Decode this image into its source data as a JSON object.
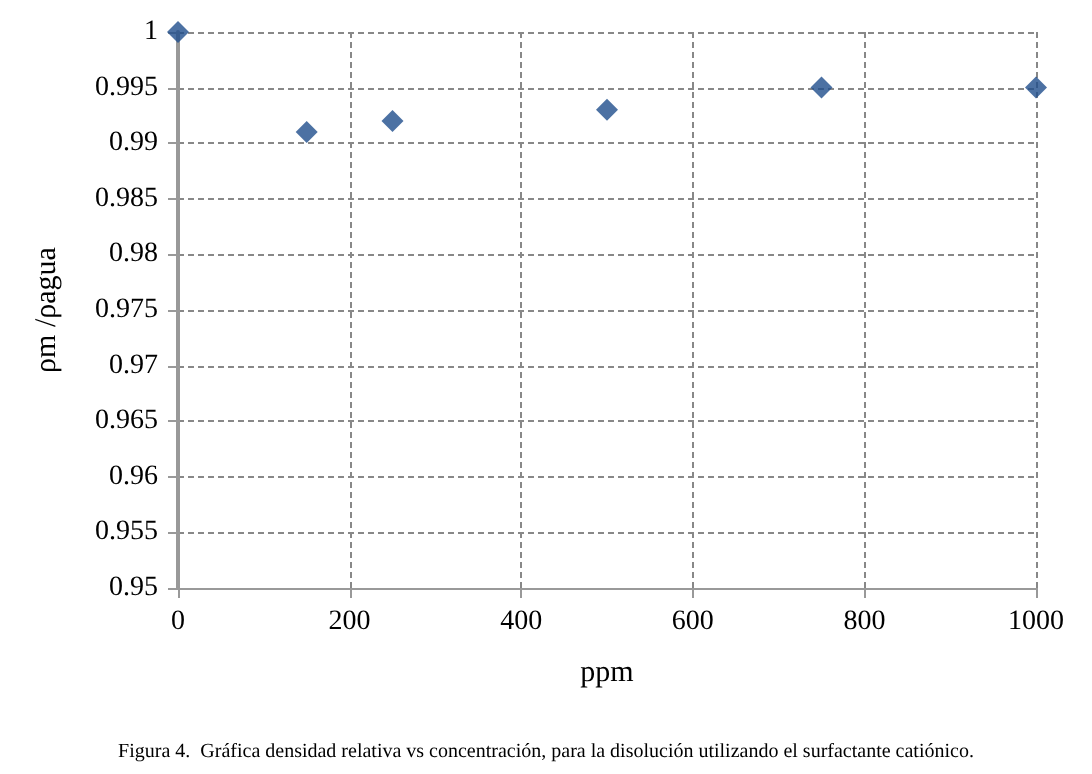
{
  "chart_data": {
    "type": "scatter",
    "xlabel": "ppm",
    "ylabel": "ρm /ρagua",
    "annotations": [
      "Figura 4.  Gráfica densidad relativa vs concentración, para la disolución utilizando el surfactante catiónico."
    ],
    "x": [
      0,
      150,
      250,
      500,
      750,
      1000
    ],
    "series": [
      {
        "color": "#1f4e8c",
        "values": [
          1,
          0.991,
          0.992,
          0.993,
          0.995,
          0.995
        ]
      }
    ],
    "xlim": [
      0,
      1000
    ],
    "xticks": [
      0,
      200,
      400,
      600,
      800,
      1000
    ],
    "ylim": [
      0.95,
      1
    ],
    "yticks": [
      0.95,
      0.955,
      0.96,
      0.965,
      0.97,
      0.975,
      0.98,
      0.985,
      0.99,
      0.995,
      1
    ],
    "grid": true,
    "marker": "diamond"
  }
}
